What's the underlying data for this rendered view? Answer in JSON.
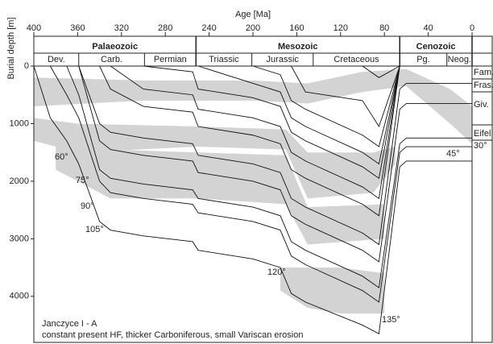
{
  "chart_data": {
    "type": "burial_history",
    "xlabel": "Age [Ma]",
    "ylabel": "Burial depth [m]",
    "xlim": [
      400,
      0
    ],
    "xticks": [
      400,
      360,
      320,
      280,
      240,
      200,
      160,
      120,
      80,
      40,
      0
    ],
    "ylim": [
      0,
      4800
    ],
    "yticks": [
      0,
      1000,
      2000,
      3000,
      4000
    ],
    "eras": [
      {
        "name": "Palaeozoic",
        "start": 400,
        "end": 252
      },
      {
        "name": "Mesozoic",
        "start": 252,
        "end": 66
      },
      {
        "name": "Cenozoic",
        "start": 66,
        "end": 0
      }
    ],
    "periods": [
      {
        "name": "Dev.",
        "start": 400,
        "end": 359
      },
      {
        "name": "Carb.",
        "start": 359,
        "end": 299
      },
      {
        "name": "Permian",
        "start": 299,
        "end": 252
      },
      {
        "name": "Triassic",
        "start": 252,
        "end": 201
      },
      {
        "name": "Jurassic",
        "start": 201,
        "end": 145
      },
      {
        "name": "Cretaceous",
        "start": 145,
        "end": 66
      },
      {
        "name": "Pg.",
        "start": 66,
        "end": 23
      },
      {
        "name": "Neog.",
        "start": 23,
        "end": 0
      }
    ],
    "layer_labels": [
      "Fam.",
      "Fras.",
      "Giv.",
      "Eifel."
    ],
    "isotherm_labels": [
      "60°",
      "75°",
      "90°",
      "105°",
      "120°",
      "135°",
      "45°",
      "30°"
    ],
    "annotations": [
      "Janczyce I - A",
      "constant present HF, thicker Carboniferous, small Variscan erosion"
    ],
    "x": [
      400,
      385,
      370,
      359,
      340,
      330,
      300,
      255,
      250,
      200,
      175,
      165,
      152,
      100,
      85,
      66,
      60,
      0
    ],
    "horizons": [
      [
        0,
        900,
        1300,
        1700,
        2700,
        2850,
        2950,
        3050,
        3200,
        3350,
        3500,
        3950,
        4100,
        4500,
        4650,
        1750,
        1650,
        1650
      ],
      [
        null,
        0,
        500,
        900,
        2000,
        2200,
        2300,
        2400,
        2550,
        2700,
        2850,
        3300,
        3450,
        3900,
        4100,
        1500,
        1400,
        1400
      ],
      [
        null,
        null,
        0,
        500,
        1800,
        1950,
        2050,
        2150,
        2300,
        2450,
        2600,
        3050,
        3200,
        3650,
        3850,
        1350,
        1250,
        1250
      ],
      [
        null,
        null,
        null,
        0,
        1300,
        1450,
        1550,
        1650,
        1850,
        2000,
        2150,
        2600,
        2750,
        3200,
        3400,
        750,
        650,
        650
      ],
      [
        null,
        null,
        null,
        0,
        1000,
        1150,
        1250,
        1350,
        1550,
        1700,
        1850,
        2300,
        2450,
        2900,
        3100,
        400,
        300,
        300
      ],
      [
        null,
        null,
        null,
        null,
        0,
        400,
        700,
        800,
        1050,
        1200,
        1350,
        1800,
        1950,
        2400,
        2600,
        0,
        null,
        null
      ],
      [
        null,
        null,
        null,
        null,
        null,
        0,
        400,
        500,
        750,
        900,
        1050,
        1500,
        1650,
        2100,
        2300,
        0,
        null,
        null
      ],
      [
        null,
        null,
        null,
        null,
        null,
        null,
        0,
        100,
        400,
        550,
        700,
        1150,
        1300,
        1750,
        1950,
        0,
        null,
        null
      ],
      [
        null,
        null,
        null,
        null,
        null,
        null,
        null,
        null,
        0,
        300,
        450,
        900,
        1050,
        1500,
        1700,
        0,
        null,
        null
      ],
      [
        null,
        null,
        null,
        null,
        null,
        null,
        null,
        null,
        null,
        0,
        150,
        600,
        750,
        1200,
        1400,
        0,
        null,
        null
      ],
      [
        null,
        null,
        null,
        null,
        null,
        null,
        null,
        null,
        null,
        null,
        null,
        0,
        450,
        600,
        1050,
        0,
        null,
        null
      ],
      [
        null,
        null,
        null,
        null,
        null,
        null,
        null,
        null,
        null,
        null,
        null,
        null,
        null,
        0,
        200,
        0,
        null,
        null
      ]
    ],
    "band_color": "#d3d3d3",
    "isotherm_bands": [
      {
        "x": [
          400,
          300,
          200,
          150,
          100,
          60,
          20,
          0
        ],
        "top": [
          200,
          250,
          250,
          300,
          100,
          50,
          400,
          700
        ],
        "bottom": [
          700,
          600,
          600,
          650,
          450,
          350,
          1000,
          1350
        ]
      },
      {
        "x": [
          400,
          360,
          250,
          170,
          150,
          90,
          70
        ],
        "top": [
          900,
          1000,
          1050,
          1100,
          1500,
          1500,
          1400
        ],
        "bottom": [
          1300,
          1500,
          1400,
          1450,
          2300,
          2200,
          1700
        ]
      },
      {
        "x": [
          380,
          330,
          250,
          170,
          150,
          80
        ],
        "top": [
          1400,
          1450,
          1500,
          1550,
          2450,
          2400
        ],
        "bottom": [
          1800,
          2300,
          2300,
          2400,
          3100,
          3000
        ]
      },
      {
        "x": [
          175,
          150,
          120,
          80
        ],
        "top": [
          3500,
          3500,
          3500,
          3600
        ],
        "bottom": [
          3900,
          4200,
          4300,
          4300
        ]
      }
    ]
  }
}
